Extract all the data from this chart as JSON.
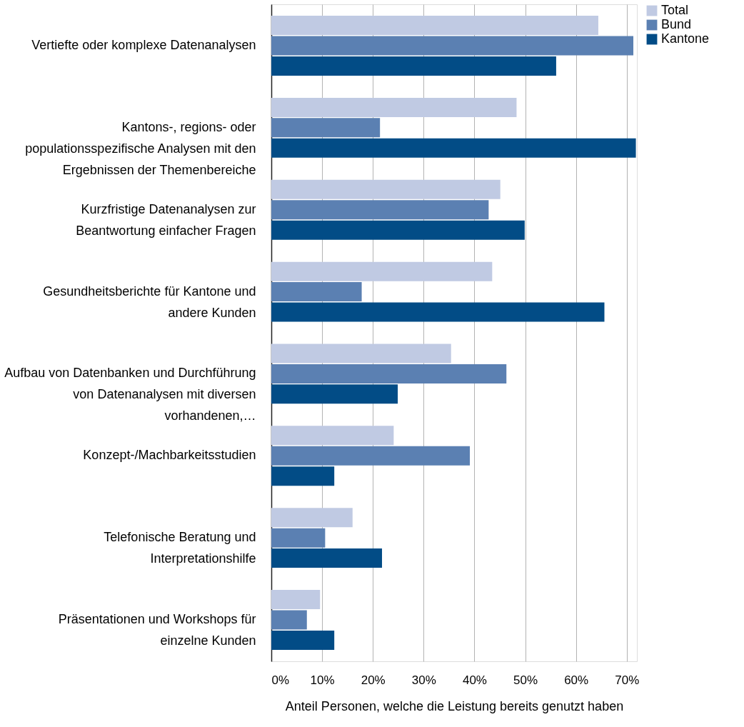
{
  "chart_data": {
    "type": "bar",
    "orientation": "horizontal",
    "xlabel": "Anteil Personen, welche die Leistung bereits genutzt haben",
    "categories": [
      "Vertiefte oder komplexe Datenanalysen",
      "Kantons-, regions- oder populationsspezifische Analysen mit den Ergebnissen der Themenbereiche",
      "Kurzfristige Datenanalysen zur Beantwortung einfacher Fragen",
      "Gesundheitsberichte für Kantone und andere Kunden",
      "Aufbau von Datenbanken und Durchführung von Datenanalysen mit diversen vorhandenen,…",
      "Konzept-/Machbarkeitsstudien",
      "Telefonische Beratung und Interpretationshilfe",
      "Präsentationen und Workshops für einzelne Kunden"
    ],
    "series": [
      {
        "name": "Total",
        "color": "#c0cae3",
        "values": [
          64.4,
          48.3,
          45.1,
          43.5,
          35.4,
          24.1,
          16.0,
          9.6
        ]
      },
      {
        "name": "Bund",
        "color": "#5b80b2",
        "values": [
          71.3,
          21.4,
          42.8,
          17.8,
          46.3,
          39.1,
          10.6,
          7.0
        ]
      },
      {
        "name": "Kantone",
        "color": "#024c86",
        "values": [
          56.1,
          71.8,
          49.9,
          65.6,
          24.9,
          12.4,
          21.8,
          12.4
        ]
      }
    ],
    "xlim": [
      0,
      72
    ],
    "xticks": [
      {
        "value": 0,
        "label": "0%"
      },
      {
        "value": 10,
        "label": "10%"
      },
      {
        "value": 20,
        "label": "20%"
      },
      {
        "value": 30,
        "label": "30%"
      },
      {
        "value": 40,
        "label": "40%"
      },
      {
        "value": 50,
        "label": "50%"
      },
      {
        "value": 60,
        "label": "60%"
      },
      {
        "value": 70,
        "label": "70%"
      }
    ],
    "grid": "x",
    "legend": "right"
  }
}
